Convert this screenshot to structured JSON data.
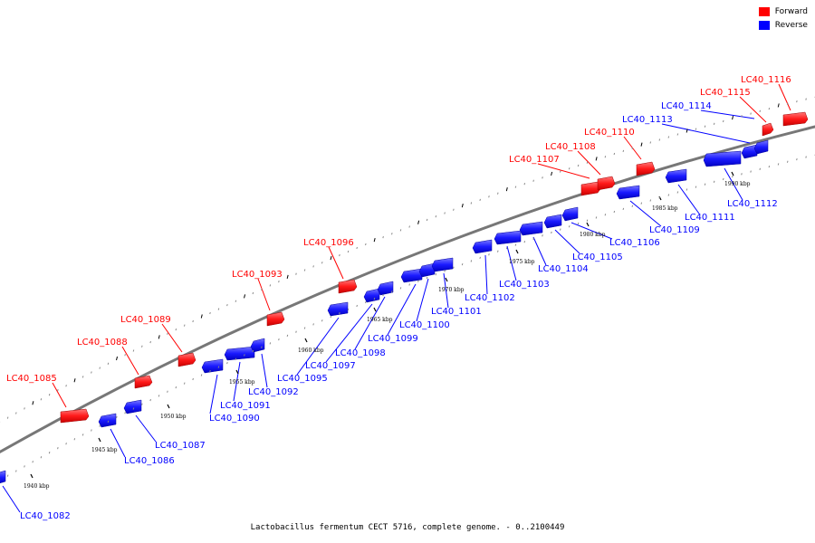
{
  "legend": {
    "forward_label": "Forward",
    "reverse_label": "Reverse",
    "forward_color": "#ff0000",
    "reverse_color": "#0000ff"
  },
  "caption": "Lactobacillus fermentum CECT 5716, complete genome. - 0..2100449",
  "kbp_ticks": [
    "1940 kbp",
    "1945 kbp",
    "1950 kbp",
    "1955 kbp",
    "1960 kbp",
    "1965 kbp",
    "1970 kbp",
    "1975 kbp",
    "1980 kbp",
    "1985 kbp",
    "1990 kbp"
  ],
  "genes_forward": [
    "LC40_1085",
    "LC40_1088",
    "LC40_1089",
    "LC40_1093",
    "LC40_1096",
    "LC40_1107",
    "LC40_1108",
    "LC40_1110",
    "LC40_1115",
    "LC40_1116"
  ],
  "genes_reverse": [
    "LC40_1082",
    "LC40_1086",
    "LC40_1087",
    "LC40_1090",
    "LC40_1091",
    "LC40_1092",
    "LC40_1095",
    "LC40_1097",
    "LC40_1098",
    "LC40_1099",
    "LC40_1100",
    "LC40_1101",
    "LC40_1102",
    "LC40_1103",
    "LC40_1104",
    "LC40_1105",
    "LC40_1106",
    "LC40_1109",
    "LC40_1111",
    "LC40_1112",
    "LC40_1113",
    "LC40_1114"
  ]
}
